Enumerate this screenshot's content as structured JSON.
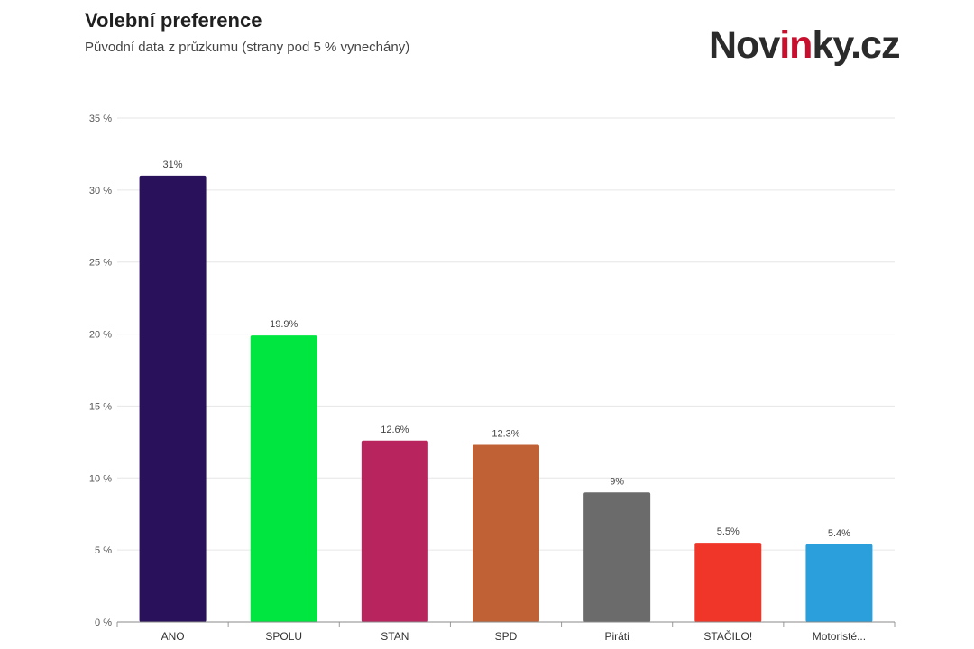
{
  "header": {
    "title": "Volební preference",
    "subtitle": "Původní data z průzkumu (strany pod 5 % vynechány)"
  },
  "brand": {
    "name": "Novinky.cz",
    "part1": "Nov",
    "part2": "in",
    "part3": "ky.cz",
    "accent_color": "#c8102e",
    "text_color": "#2b2b2b"
  },
  "chart_data": {
    "type": "bar",
    "categories": [
      "ANO",
      "SPOLU",
      "STAN",
      "SPD",
      "Piráti",
      "STAČILO!",
      "Motoristé..."
    ],
    "values": [
      31,
      19.9,
      12.6,
      12.3,
      9,
      5.5,
      5.4
    ],
    "value_labels": [
      "31%",
      "19.9%",
      "12.6%",
      "12.3%",
      "9%",
      "5.5%",
      "5.4%"
    ],
    "colors": [
      "#2a115c",
      "#00e640",
      "#b8245e",
      "#c06135",
      "#6b6b6b",
      "#f03628",
      "#2a9fdc"
    ],
    "ylim": [
      0,
      35
    ],
    "yticks": [
      0,
      5,
      10,
      15,
      20,
      25,
      30,
      35
    ],
    "ytick_labels": [
      "0 %",
      "5 %",
      "10 %",
      "15 %",
      "20 %",
      "25 %",
      "30 %",
      "35 %"
    ],
    "grid": true,
    "xlabel": "",
    "ylabel": ""
  }
}
